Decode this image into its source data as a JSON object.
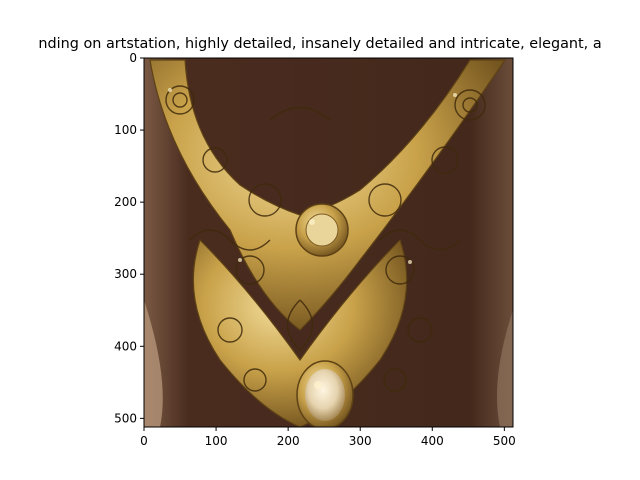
{
  "figure": {
    "title": "nding on artstation, highly detailed, insanely detailed and intricate, elegant, a"
  },
  "image": {
    "description_name": "ornate-gold-necklace-image",
    "pixel_extent": {
      "x": [
        0,
        512
      ],
      "y": [
        0,
        512
      ]
    }
  },
  "axes": {
    "x_ticks": [
      0,
      100,
      200,
      300,
      400,
      500
    ],
    "y_ticks": [
      0,
      100,
      200,
      300,
      400,
      500
    ],
    "y_inverted": true
  },
  "colors": {
    "background": "#4a2c1f",
    "gold": "#c9a24a",
    "gold_light": "#e8d08a",
    "gold_dark": "#7a5a22",
    "pearl": "#e9dcc0",
    "neck_shadow": "#2e1a12",
    "side_light": "#a98b70"
  }
}
